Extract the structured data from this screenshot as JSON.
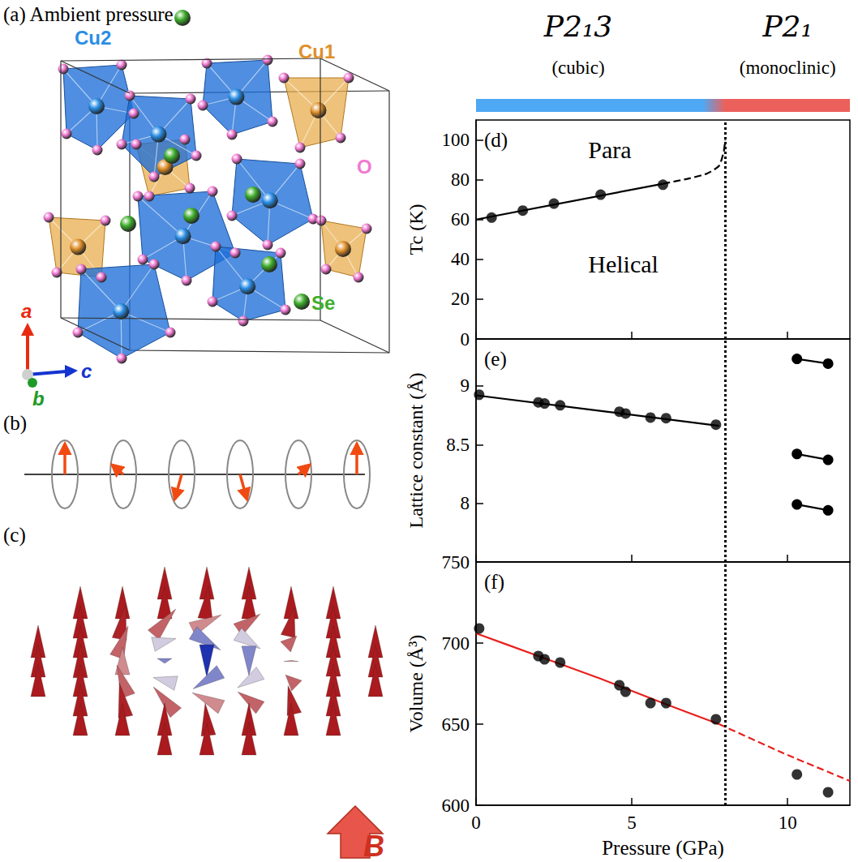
{
  "diagrams": {
    "a": {
      "label": "(a)",
      "title": "Ambient pressure",
      "atoms": [
        {
          "text": "Cu2",
          "color": "#2a8ee6"
        },
        {
          "text": "Cu1",
          "color": "#e0902a"
        },
        {
          "text": "O",
          "color": "#f07ad2"
        },
        {
          "text": "Se",
          "color": "#3fae2c"
        }
      ],
      "axes": [
        {
          "text": "a",
          "color": "#e82a10"
        },
        {
          "text": "b",
          "color": "#1f9a28"
        },
        {
          "text": "c",
          "color": "#1434d0"
        }
      ]
    },
    "b": {
      "label": "(b)"
    },
    "c": {
      "label": "(c)",
      "field": "B"
    }
  },
  "phases": [
    {
      "label": "P2₁3",
      "subtitle": "(cubic)",
      "color": "#4ea8f4"
    },
    {
      "label": "P2₁",
      "subtitle": "(monoclinic)",
      "color": "#ec605c"
    }
  ],
  "chart_data": [
    {
      "type": "scatter",
      "panel": "(d)",
      "ylabel": "Tc (K)",
      "annotations": [
        "Para",
        "Helical"
      ],
      "xlim": [
        0,
        12
      ],
      "xticks": [
        0,
        5,
        10
      ],
      "ylim": [
        0,
        110
      ],
      "yticks": [
        0,
        20,
        40,
        60,
        80,
        100
      ],
      "tick_labels": "y",
      "grid": false,
      "boundary": 8,
      "series": [
        {
          "type": "scatter",
          "marker": "circle",
          "color": "#000000",
          "x": [
            0.5,
            1.5,
            2.5,
            4.0,
            6.0
          ],
          "values": [
            61,
            64.5,
            68,
            72.5,
            77.5
          ]
        },
        {
          "type": "line",
          "line_style": "solid",
          "color": "#000000",
          "x": [
            0,
            6
          ],
          "values": [
            60,
            78
          ]
        },
        {
          "type": "line",
          "line_style": "dashed",
          "color": "#000000",
          "x": [
            6,
            6.8,
            7.4,
            7.8,
            7.95,
            8.0
          ],
          "values": [
            78,
            80.5,
            83,
            87,
            94,
            100
          ]
        }
      ]
    },
    {
      "type": "scatter",
      "panel": "(e)",
      "ylabel": "Lattice constant (Å)",
      "xlim": [
        0,
        12
      ],
      "xticks": [
        0,
        5,
        10
      ],
      "ylim": [
        7.5,
        9.4
      ],
      "yticks": [
        8,
        8.5,
        9
      ],
      "tick_labels": "y",
      "grid": false,
      "boundary": 8,
      "series": [
        {
          "type": "scatter",
          "marker": "circle",
          "color": "#000000",
          "x": [
            0.1,
            2.0,
            2.2,
            2.7,
            4.6,
            4.8,
            5.6,
            6.1,
            7.7
          ],
          "values": [
            8.925,
            8.86,
            8.85,
            8.835,
            8.78,
            8.765,
            8.73,
            8.725,
            8.67
          ]
        },
        {
          "type": "line",
          "line_style": "solid",
          "color": "#000000",
          "x": [
            0,
            7.8
          ],
          "values": [
            8.92,
            8.66
          ]
        },
        {
          "type": "line",
          "line_style": "solid",
          "marker": "circle",
          "color": "#000000",
          "x": [
            10.3,
            11.3
          ],
          "values": [
            9.23,
            9.19
          ]
        },
        {
          "type": "line",
          "line_style": "solid",
          "marker": "circle",
          "color": "#000000",
          "x": [
            10.3,
            11.3
          ],
          "values": [
            8.42,
            8.37
          ]
        },
        {
          "type": "line",
          "line_style": "solid",
          "marker": "circle",
          "color": "#000000",
          "x": [
            10.3,
            11.3
          ],
          "values": [
            7.99,
            7.94
          ]
        }
      ]
    },
    {
      "type": "scatter",
      "panel": "(f)",
      "xlabel": "Pressure (GPa)",
      "ylabel": "Volume (Å³)",
      "xlim": [
        0,
        12
      ],
      "xticks": [
        0,
        5,
        10
      ],
      "ylim": [
        600,
        750
      ],
      "yticks": [
        600,
        650,
        700,
        750
      ],
      "grid": false,
      "boundary": 8,
      "series": [
        {
          "type": "scatter",
          "marker": "circle",
          "color": "#000000",
          "x": [
            0.1,
            2.0,
            2.2,
            2.7,
            4.6,
            4.8,
            5.6,
            6.1,
            7.7,
            10.3,
            11.3
          ],
          "values": [
            709,
            692,
            690,
            688,
            674,
            670,
            663,
            663,
            653,
            619,
            608
          ]
        },
        {
          "type": "line",
          "line_style": "solid",
          "color": "#e8201c",
          "x": [
            0,
            2,
            4,
            6,
            7.8
          ],
          "values": [
            706,
            692,
            678,
            663,
            650
          ]
        },
        {
          "type": "line",
          "line_style": "dashed",
          "color": "#e8201c",
          "x": [
            7.8,
            10,
            12
          ],
          "values": [
            650,
            631,
            615
          ]
        }
      ]
    }
  ]
}
